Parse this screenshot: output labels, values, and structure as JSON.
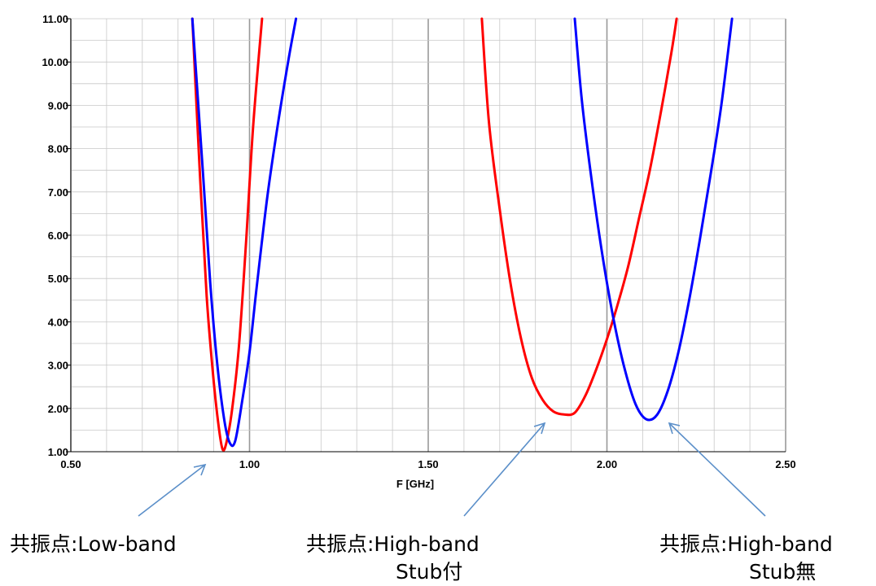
{
  "chart_data": {
    "type": "line",
    "title": "",
    "xlabel": "F [GHz]",
    "ylabel": "",
    "xlim": [
      0.5,
      2.5
    ],
    "ylim": [
      1.0,
      11.0
    ],
    "grid": true,
    "x_ticks": [
      "0.50",
      "1.00",
      "1.50",
      "2.00",
      "2.50"
    ],
    "y_ticks": [
      "1.00",
      "2.00",
      "3.00",
      "4.00",
      "5.00",
      "6.00",
      "7.00",
      "8.00",
      "9.00",
      "10.00",
      "11.00"
    ],
    "series": [
      {
        "color": "#ff0000",
        "segments": [
          [
            [
              0.84,
              11.0
            ],
            [
              0.86,
              7.6
            ],
            [
              0.88,
              4.6
            ],
            [
              0.9,
              2.6
            ],
            [
              0.915,
              1.5
            ],
            [
              0.925,
              1.05
            ],
            [
              0.935,
              1.2
            ],
            [
              0.95,
              1.9
            ],
            [
              0.97,
              3.4
            ],
            [
              0.99,
              5.8
            ],
            [
              1.01,
              8.5
            ],
            [
              1.035,
              11.0
            ]
          ],
          [
            [
              1.65,
              11.0
            ],
            [
              1.67,
              8.6
            ],
            [
              1.7,
              6.6
            ],
            [
              1.73,
              4.9
            ],
            [
              1.76,
              3.6
            ],
            [
              1.79,
              2.7
            ],
            [
              1.82,
              2.2
            ],
            [
              1.85,
              1.93
            ],
            [
              1.88,
              1.86
            ],
            [
              1.91,
              1.9
            ],
            [
              1.94,
              2.3
            ],
            [
              1.97,
              2.9
            ],
            [
              2.0,
              3.6
            ],
            [
              2.03,
              4.4
            ],
            [
              2.06,
              5.3
            ],
            [
              2.09,
              6.4
            ],
            [
              2.12,
              7.5
            ],
            [
              2.15,
              8.8
            ],
            [
              2.18,
              10.2
            ],
            [
              2.195,
              11.0
            ]
          ]
        ]
      },
      {
        "color": "#0000ff",
        "segments": [
          [
            [
              0.84,
              11.0
            ],
            [
              0.87,
              7.4
            ],
            [
              0.89,
              4.9
            ],
            [
              0.91,
              3.0
            ],
            [
              0.93,
              1.7
            ],
            [
              0.945,
              1.2
            ],
            [
              0.96,
              1.25
            ],
            [
              0.98,
              2.2
            ],
            [
              1.0,
              3.3
            ],
            [
              1.02,
              4.8
            ],
            [
              1.05,
              6.9
            ],
            [
              1.08,
              8.6
            ],
            [
              1.11,
              10.1
            ],
            [
              1.13,
              11.0
            ]
          ],
          [
            [
              1.91,
              11.0
            ],
            [
              1.93,
              9.1
            ],
            [
              1.96,
              7.1
            ],
            [
              1.99,
              5.4
            ],
            [
              2.02,
              4.0
            ],
            [
              2.05,
              2.9
            ],
            [
              2.08,
              2.1
            ],
            [
              2.11,
              1.75
            ],
            [
              2.14,
              1.85
            ],
            [
              2.17,
              2.4
            ],
            [
              2.2,
              3.3
            ],
            [
              2.23,
              4.5
            ],
            [
              2.26,
              5.9
            ],
            [
              2.29,
              7.4
            ],
            [
              2.32,
              9.0
            ],
            [
              2.35,
              11.0
            ]
          ]
        ]
      }
    ]
  },
  "annotations": [
    {
      "main": "共振点:Low-band",
      "sub": ""
    },
    {
      "main": "共振点:High-band",
      "sub": "Stub付"
    },
    {
      "main": "共振点:High-band",
      "sub": "Stub無"
    }
  ],
  "colors": {
    "arrow": "#5b8fc9",
    "grid": "#c8c8c8",
    "major_grid": "#999999"
  }
}
